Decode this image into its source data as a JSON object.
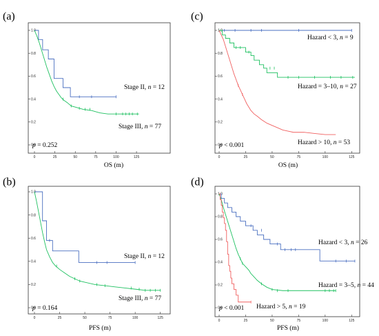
{
  "chart_data": [
    {
      "panel": "(a)",
      "type": "line",
      "xlabel": "OS (m)",
      "xlim": [
        0,
        130
      ],
      "ylim": [
        0,
        1.0
      ],
      "xticks": [
        "0",
        "25",
        "50",
        "75",
        "100",
        "125"
      ],
      "yticks": [
        "0.0",
        "0.2",
        "0.4",
        "0.6",
        "0.8",
        "1.0"
      ],
      "p_value": "p = 0.252",
      "series": [
        {
          "name": "Stage II, n = 12",
          "color": "#4a6fc0",
          "x": [
            0,
            5,
            5,
            10,
            10,
            17,
            17,
            24,
            24,
            35,
            35,
            44,
            44,
            100
          ],
          "y": [
            1.0,
            1.0,
            0.92,
            0.92,
            0.83,
            0.83,
            0.75,
            0.75,
            0.58,
            0.58,
            0.5,
            0.5,
            0.42,
            0.42
          ],
          "censors": [
            [
              55,
              0.42
            ],
            [
              70,
              0.42
            ],
            [
              100,
              0.42
            ]
          ]
        },
        {
          "name": "Stage III, n = 77",
          "color": "#1ec060",
          "x": [
            0,
            3,
            6,
            9,
            12,
            15,
            18,
            21,
            24,
            27,
            30,
            33,
            36,
            40,
            45,
            50,
            55,
            60,
            70,
            80,
            90,
            100,
            110,
            128
          ],
          "y": [
            1.0,
            0.95,
            0.89,
            0.82,
            0.75,
            0.68,
            0.62,
            0.56,
            0.51,
            0.47,
            0.44,
            0.41,
            0.39,
            0.37,
            0.34,
            0.33,
            0.32,
            0.31,
            0.3,
            0.28,
            0.27,
            0.27,
            0.27,
            0.27
          ],
          "censors": [
            [
              35,
              0.4
            ],
            [
              45,
              0.34
            ],
            [
              55,
              0.32
            ],
            [
              62,
              0.31
            ],
            [
              68,
              0.31
            ],
            [
              100,
              0.27
            ],
            [
              108,
              0.27
            ],
            [
              112,
              0.27
            ],
            [
              116,
              0.27
            ],
            [
              120,
              0.27
            ],
            [
              126,
              0.27
            ]
          ]
        }
      ]
    },
    {
      "panel": "(c)",
      "type": "line",
      "xlabel": "OS (m)",
      "xlim": [
        0,
        130
      ],
      "ylim": [
        0,
        1.0
      ],
      "xticks": [
        "0",
        "25",
        "50",
        "75",
        "100",
        "125"
      ],
      "yticks": [
        "0.0",
        "0.2",
        "0.4",
        "0.6",
        "0.8",
        "1.0"
      ],
      "p_value": "p < 0.001",
      "series": [
        {
          "name": "Hazard < 3, n = 9",
          "color": "#4a6fc0",
          "x": [
            0,
            125
          ],
          "y": [
            1.0,
            1.0
          ],
          "censors": [
            [
              5,
              1.0
            ],
            [
              15,
              1.0
            ],
            [
              30,
              1.0
            ],
            [
              40,
              1.0
            ],
            [
              75,
              1.0
            ],
            [
              125,
              1.0
            ]
          ]
        },
        {
          "name": "Hazard = 3–10, n = 27",
          "color": "#1ec060",
          "x": [
            0,
            3,
            3,
            6,
            6,
            10,
            10,
            14,
            14,
            25,
            25,
            30,
            30,
            33,
            33,
            38,
            38,
            42,
            42,
            45,
            45,
            55,
            55,
            60,
            60,
            128
          ],
          "y": [
            1.0,
            1.0,
            0.96,
            0.96,
            0.93,
            0.93,
            0.89,
            0.89,
            0.85,
            0.85,
            0.81,
            0.81,
            0.78,
            0.78,
            0.74,
            0.74,
            0.7,
            0.7,
            0.67,
            0.67,
            0.63,
            0.63,
            0.59,
            0.59,
            0.59,
            0.59
          ],
          "censors": [
            [
              16,
              0.85
            ],
            [
              20,
              0.85
            ],
            [
              28,
              0.81
            ],
            [
              48,
              0.67
            ],
            [
              52,
              0.67
            ],
            [
              65,
              0.59
            ],
            [
              75,
              0.59
            ],
            [
              90,
              0.59
            ],
            [
              105,
              0.59
            ],
            [
              115,
              0.59
            ],
            [
              126,
              0.59
            ]
          ]
        },
        {
          "name": "Hazard > 10, n = 53",
          "color": "#f06060",
          "x": [
            0,
            2,
            4,
            6,
            8,
            10,
            12,
            14,
            16,
            18,
            20,
            22,
            24,
            26,
            28,
            30,
            33,
            36,
            40,
            45,
            50,
            55,
            60,
            65,
            70,
            80,
            90,
            100,
            110
          ],
          "y": [
            1.0,
            0.96,
            0.92,
            0.86,
            0.8,
            0.74,
            0.68,
            0.62,
            0.57,
            0.52,
            0.48,
            0.44,
            0.4,
            0.36,
            0.33,
            0.3,
            0.27,
            0.25,
            0.22,
            0.19,
            0.17,
            0.15,
            0.13,
            0.12,
            0.11,
            0.11,
            0.1,
            0.09,
            0.09
          ],
          "censors": [
            [
              18,
              0.52
            ],
            [
              22,
              0.44
            ]
          ]
        }
      ]
    },
    {
      "panel": "(b)",
      "type": "line",
      "xlabel": "PFS (m)",
      "xlim": [
        0,
        130
      ],
      "ylim": [
        0,
        1.0
      ],
      "xticks": [
        "0",
        "25",
        "50",
        "75",
        "100",
        "125"
      ],
      "yticks": [
        "0.0",
        "0.2",
        "0.4",
        "0.6",
        "0.8",
        "1.0"
      ],
      "p_value": "p = 0.164",
      "series": [
        {
          "name": "Stage II, n = 12",
          "color": "#4a6fc0",
          "x": [
            0,
            8,
            8,
            12,
            12,
            18,
            18,
            44,
            44,
            100
          ],
          "y": [
            1.0,
            1.0,
            0.75,
            0.75,
            0.58,
            0.58,
            0.49,
            0.49,
            0.39,
            0.39
          ],
          "censors": [
            [
              15,
              0.58
            ],
            [
              62,
              0.39
            ],
            [
              72,
              0.39
            ],
            [
              100,
              0.39
            ]
          ]
        },
        {
          "name": "Stage III, n = 77",
          "color": "#1ec060",
          "x": [
            0,
            2,
            4,
            6,
            8,
            10,
            12,
            15,
            18,
            21,
            25,
            30,
            35,
            40,
            45,
            50,
            60,
            70,
            80,
            90,
            100,
            110,
            125
          ],
          "y": [
            1.0,
            0.92,
            0.83,
            0.74,
            0.65,
            0.57,
            0.5,
            0.44,
            0.39,
            0.36,
            0.33,
            0.3,
            0.27,
            0.25,
            0.23,
            0.22,
            0.2,
            0.19,
            0.18,
            0.17,
            0.16,
            0.15,
            0.15
          ],
          "censors": [
            [
              22,
              0.36
            ],
            [
              40,
              0.25
            ],
            [
              45,
              0.23
            ],
            [
              62,
              0.2
            ],
            [
              70,
              0.19
            ],
            [
              96,
              0.17
            ],
            [
              104,
              0.16
            ],
            [
              110,
              0.15
            ],
            [
              115,
              0.15
            ],
            [
              120,
              0.15
            ],
            [
              125,
              0.15
            ]
          ]
        }
      ]
    },
    {
      "panel": "(d)",
      "type": "line",
      "xlabel": "PFS (m)",
      "xlim": [
        0,
        130
      ],
      "ylim": [
        0,
        1.0
      ],
      "xticks": [
        "0",
        "25",
        "50",
        "75",
        "100",
        "125"
      ],
      "yticks": [
        "0.0",
        "0.2",
        "0.4",
        "0.6",
        "0.8",
        "1.0"
      ],
      "p_value": "p < 0.001",
      "series": [
        {
          "name": "Hazard < 3, n = 26",
          "color": "#4a6fc0",
          "x": [
            0,
            2,
            2,
            5,
            5,
            8,
            8,
            12,
            12,
            16,
            16,
            20,
            20,
            25,
            25,
            32,
            32,
            36,
            36,
            42,
            42,
            48,
            48,
            58,
            58,
            95,
            95,
            128
          ],
          "y": [
            1.0,
            1.0,
            0.96,
            0.96,
            0.92,
            0.92,
            0.88,
            0.88,
            0.84,
            0.84,
            0.8,
            0.8,
            0.76,
            0.76,
            0.72,
            0.72,
            0.68,
            0.68,
            0.64,
            0.64,
            0.6,
            0.6,
            0.56,
            0.56,
            0.51,
            0.51,
            0.41,
            0.41
          ],
          "censors": [
            [
              30,
              0.72
            ],
            [
              40,
              0.68
            ],
            [
              55,
              0.56
            ],
            [
              62,
              0.51
            ],
            [
              68,
              0.51
            ],
            [
              72,
              0.51
            ],
            [
              110,
              0.41
            ],
            [
              120,
              0.41
            ],
            [
              128,
              0.41
            ]
          ]
        },
        {
          "name": "Hazard = 3–5, n = 44",
          "color": "#1ec060",
          "x": [
            0,
            2,
            4,
            6,
            8,
            10,
            12,
            14,
            16,
            18,
            20,
            22,
            25,
            28,
            30,
            33,
            36,
            40,
            45,
            50,
            60,
            70,
            80,
            90,
            100,
            110
          ],
          "y": [
            1.0,
            0.95,
            0.88,
            0.82,
            0.76,
            0.7,
            0.64,
            0.58,
            0.52,
            0.47,
            0.43,
            0.39,
            0.36,
            0.33,
            0.3,
            0.27,
            0.24,
            0.21,
            0.18,
            0.16,
            0.15,
            0.15,
            0.15,
            0.15,
            0.15,
            0.15
          ],
          "censors": [
            [
              20,
              0.43
            ],
            [
              22,
              0.39
            ],
            [
              40,
              0.21
            ],
            [
              50,
              0.16
            ],
            [
              55,
              0.15
            ],
            [
              65,
              0.15
            ],
            [
              100,
              0.15
            ],
            [
              104,
              0.15
            ],
            [
              108,
              0.15
            ],
            [
              110,
              0.15
            ]
          ]
        },
        {
          "name": "Hazard > 5, n = 19",
          "color": "#f06060",
          "x": [
            0,
            1,
            1,
            2,
            2,
            3,
            3,
            4,
            4,
            5,
            5,
            6,
            6,
            7,
            7,
            8,
            8,
            9,
            9,
            10,
            10,
            11,
            11,
            12,
            12,
            14,
            14,
            16,
            16,
            18,
            18,
            30
          ],
          "y": [
            1.0,
            1.0,
            0.95,
            0.95,
            0.9,
            0.9,
            0.84,
            0.84,
            0.79,
            0.79,
            0.74,
            0.74,
            0.68,
            0.68,
            0.58,
            0.58,
            0.47,
            0.47,
            0.37,
            0.37,
            0.32,
            0.32,
            0.26,
            0.26,
            0.21,
            0.21,
            0.16,
            0.16,
            0.11,
            0.11,
            0.05,
            0.05
          ],
          "censors": [
            [
              30,
              0.05
            ]
          ]
        }
      ]
    }
  ]
}
